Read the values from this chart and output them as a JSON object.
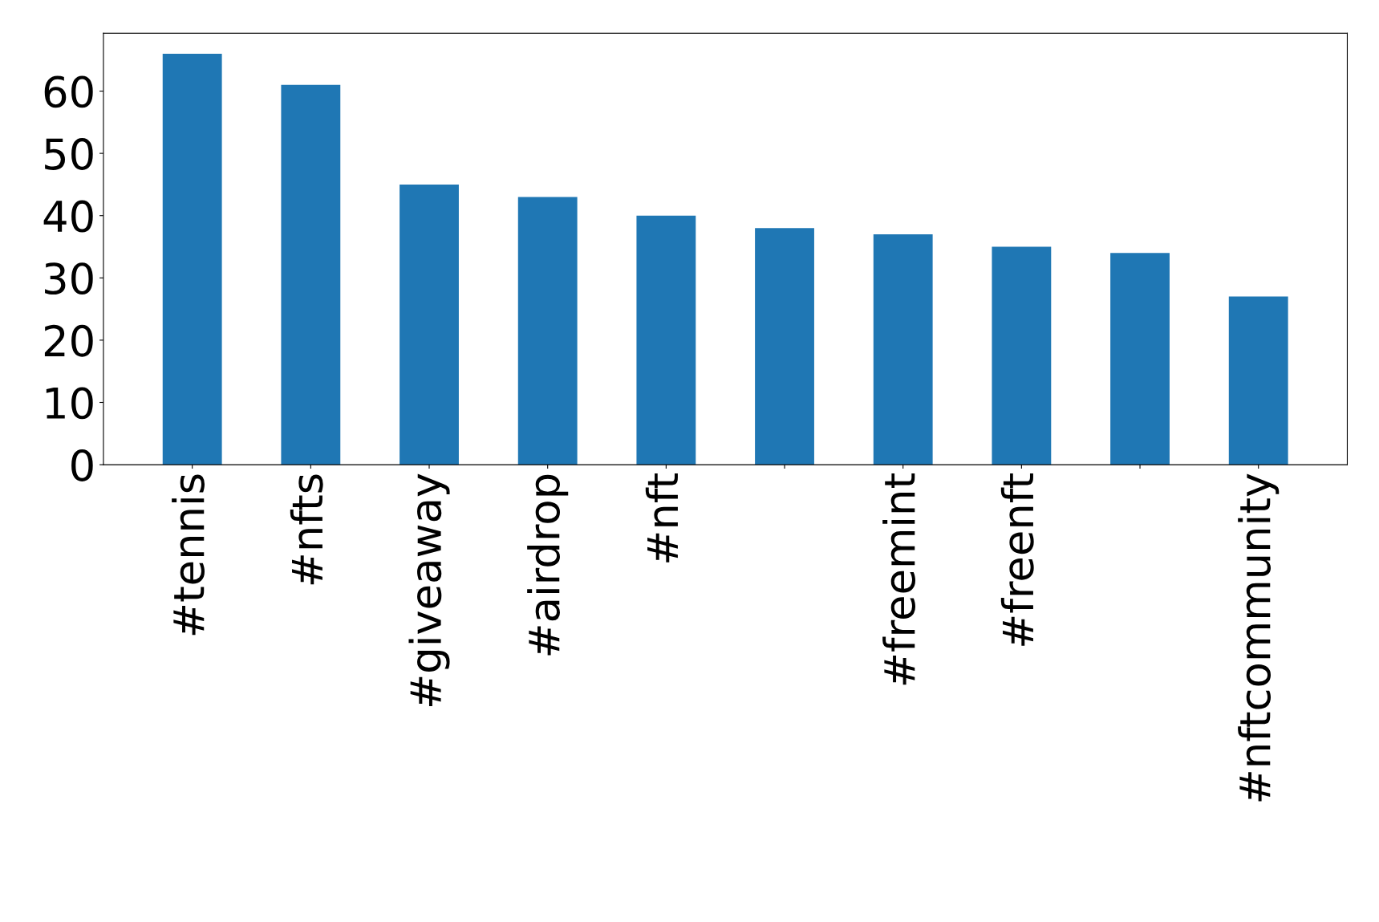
{
  "chart_data": {
    "type": "bar",
    "categories": [
      "#tennis",
      "#nfts",
      "#giveaway",
      "#airdrop",
      "#nft",
      null,
      "#freemint",
      "#freenft",
      null,
      "#nftcommunity"
    ],
    "values": [
      66,
      61,
      45,
      43,
      40,
      38,
      37,
      35,
      34,
      27
    ],
    "color": "#1f77b4",
    "ylim": [
      0,
      69.3
    ],
    "yticks": [
      0,
      10,
      20,
      30,
      40,
      50,
      60
    ],
    "grid": false,
    "legend": false
  }
}
